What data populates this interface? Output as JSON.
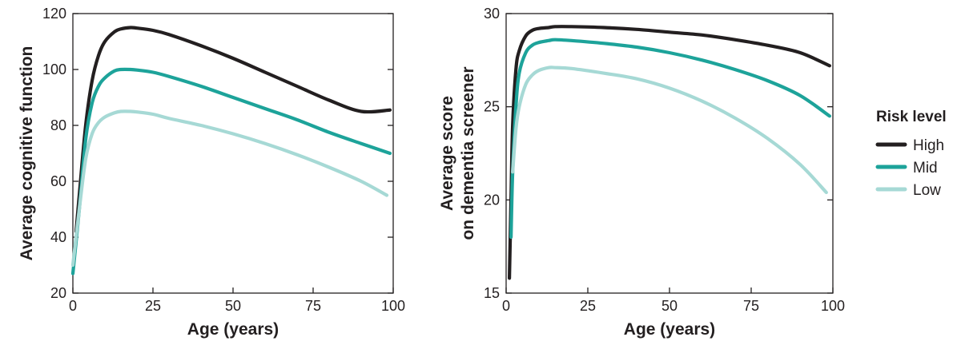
{
  "chart_data": [
    {
      "type": "line",
      "xlabel": "Age (years)",
      "ylabel": "Average cognitive function",
      "xlim": [
        0,
        100
      ],
      "ylim": [
        20,
        120
      ],
      "xticks": [
        0,
        25,
        50,
        75,
        100
      ],
      "yticks": [
        20,
        40,
        60,
        80,
        100,
        120
      ],
      "grid": false,
      "series": [
        {
          "name": "High",
          "color": "#231f20",
          "x": [
            1,
            2,
            4,
            6,
            8,
            10,
            13,
            15,
            18,
            20,
            25,
            30,
            40,
            50,
            60,
            70,
            80,
            90,
            99
          ],
          "y": [
            42,
            55,
            80,
            96,
            105,
            110,
            113.5,
            114.5,
            115,
            114.8,
            114,
            112.5,
            108.5,
            104,
            99,
            94,
            89,
            85,
            85.5
          ]
        },
        {
          "name": "Mid",
          "color": "#1da39a",
          "x": [
            0,
            2,
            4,
            6,
            8,
            10,
            13,
            15,
            18,
            20,
            25,
            30,
            40,
            50,
            60,
            70,
            80,
            90,
            99
          ],
          "y": [
            27,
            50,
            75,
            88,
            94,
            97,
            99.5,
            100,
            100,
            99.8,
            99,
            97.5,
            94,
            90,
            86,
            82,
            77.5,
            73.5,
            70
          ]
        },
        {
          "name": "Low",
          "color": "#a6d9d5",
          "x": [
            0,
            2,
            4,
            6,
            8,
            10,
            13,
            15,
            18,
            20,
            25,
            30,
            40,
            50,
            60,
            70,
            80,
            90,
            98
          ],
          "y": [
            30,
            50,
            68,
            77,
            81,
            83,
            84.5,
            85,
            85,
            84.8,
            84,
            82.5,
            80,
            77,
            73.5,
            69.5,
            65,
            60,
            55
          ]
        }
      ]
    },
    {
      "type": "line",
      "xlabel": "Age (years)",
      "ylabel_lines": [
        "Average score",
        "on dementia screener"
      ],
      "xlim": [
        0,
        100
      ],
      "ylim": [
        15,
        30
      ],
      "xticks": [
        0,
        25,
        50,
        75,
        100
      ],
      "yticks": [
        15,
        20,
        25,
        30
      ],
      "grid": false,
      "series": [
        {
          "name": "High",
          "color": "#231f20",
          "x": [
            1,
            1.5,
            2,
            3,
            4,
            6,
            8,
            10,
            13,
            15,
            20,
            30,
            40,
            50,
            60,
            70,
            80,
            90,
            99
          ],
          "y": [
            15.8,
            20,
            24,
            27,
            28,
            28.8,
            29.1,
            29.2,
            29.25,
            29.3,
            29.3,
            29.25,
            29.15,
            29.0,
            28.85,
            28.6,
            28.3,
            27.9,
            27.2
          ]
        },
        {
          "name": "Mid",
          "color": "#1da39a",
          "x": [
            1.5,
            2,
            3,
            4,
            6,
            8,
            10,
            13,
            15,
            20,
            30,
            40,
            50,
            60,
            70,
            80,
            90,
            99
          ],
          "y": [
            18,
            21.5,
            25,
            26.8,
            27.9,
            28.3,
            28.45,
            28.55,
            28.6,
            28.55,
            28.4,
            28.2,
            27.9,
            27.5,
            27,
            26.4,
            25.6,
            24.5
          ]
        },
        {
          "name": "Low",
          "color": "#a6d9d5",
          "x": [
            2,
            3,
            4,
            6,
            8,
            10,
            13,
            15,
            20,
            30,
            40,
            50,
            60,
            70,
            80,
            90,
            98
          ],
          "y": [
            21.5,
            23.8,
            25,
            26.2,
            26.7,
            26.95,
            27.1,
            27.1,
            27.05,
            26.8,
            26.5,
            26.0,
            25.3,
            24.4,
            23.3,
            21.9,
            20.4
          ]
        }
      ]
    }
  ],
  "legend": {
    "title": "Risk level",
    "placement": "right",
    "items": [
      {
        "label": "High",
        "color": "#231f20"
      },
      {
        "label": "Mid",
        "color": "#1da39a"
      },
      {
        "label": "Low",
        "color": "#a6d9d5"
      }
    ]
  }
}
